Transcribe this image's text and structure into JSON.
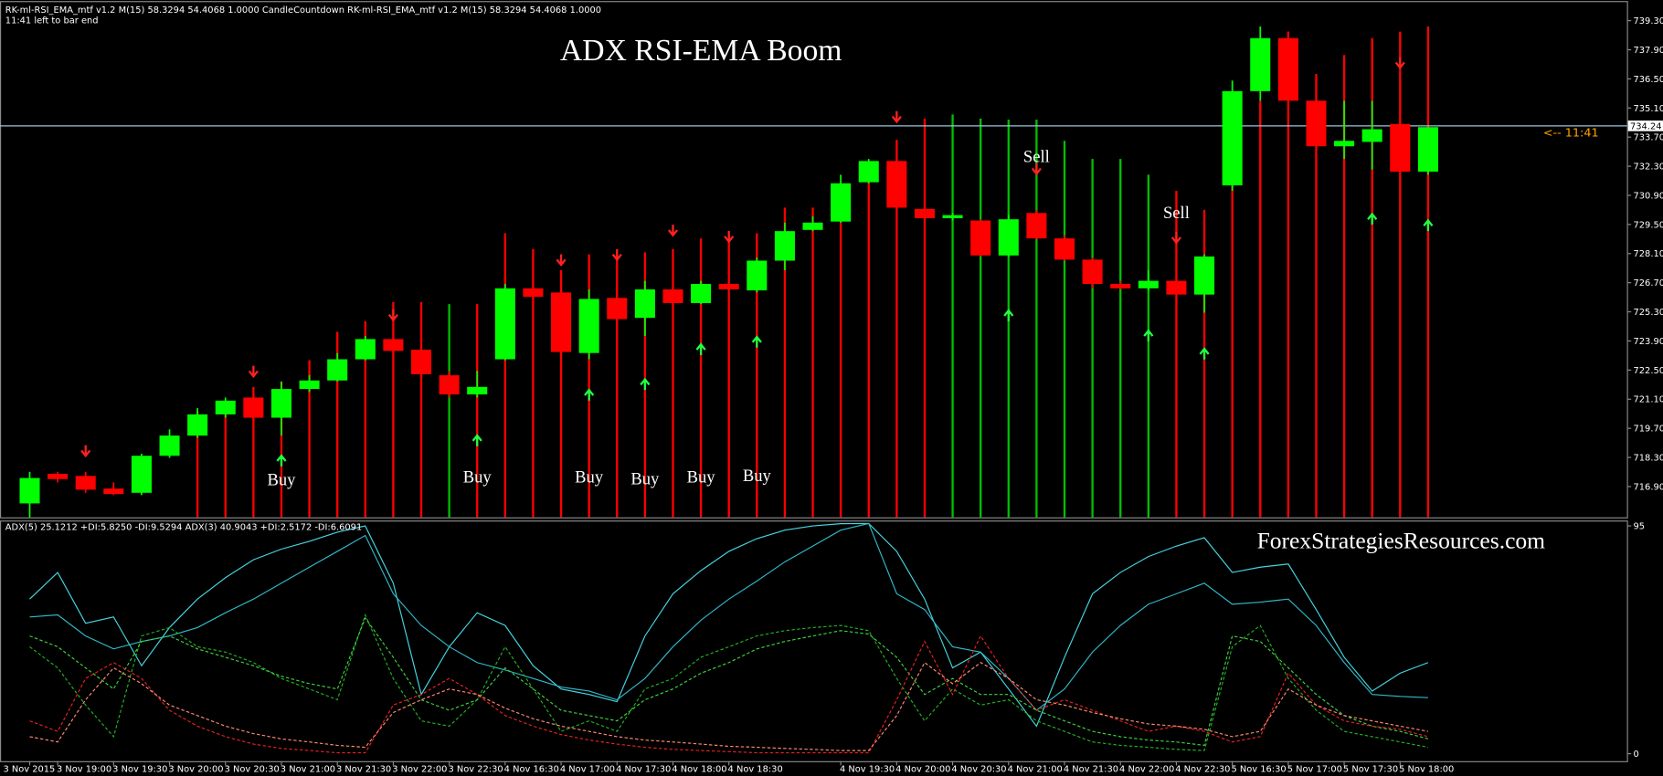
{
  "chart_data": [
    {
      "type": "candlestick",
      "title": "ADX RSI-EMA Boom",
      "header": [
        "RK-ml-RSI_EMA_mtf v1.2 M(15) 58.3294 54.4068 1.0000  CandleCountdown  RK-ml-RSI_EMA_mtf v1.2 M(15) 58.3294 54.4068 1.0000",
        "11:41 left to bar end"
      ],
      "categories": [
        "3 Nov 2015",
        "3 Nov 19:00",
        null,
        "3 Nov 19:30",
        null,
        "3 Nov 20:00",
        null,
        "3 Nov 20:30",
        null,
        "3 Nov 21:00",
        null,
        "3 Nov 21:30",
        null,
        "3 Nov 22:00",
        null,
        "3 Nov 22:30",
        null,
        "4 Nov 16:30",
        null,
        "4 Nov 17:00",
        null,
        "4 Nov 17:30",
        null,
        "4 Nov 18:00",
        null,
        "4 Nov 18:30",
        null,
        null,
        null,
        "4 Nov 19:30",
        null,
        "4 Nov 20:00",
        null,
        "4 Nov 20:30",
        null,
        "4 Nov 21:00",
        null,
        "4 Nov 21:30",
        null,
        "4 Nov 22:00",
        null,
        "4 Nov 22:30",
        null,
        "5 Nov 16:30",
        null,
        "5 Nov 17:00",
        null,
        "5 Nov 17:30",
        null,
        "5 Nov 18:00",
        null
      ],
      "open": [
        716.09,
        717.51,
        717.41,
        716.8,
        716.6,
        718.38,
        719.35,
        720.37,
        721.18,
        720.21,
        721.59,
        722.0,
        723.02,
        723.99,
        723.48,
        722.25,
        721.33,
        723.02,
        726.43,
        726.23,
        723.32,
        725.97,
        725.01,
        726.38,
        725.72,
        726.64,
        726.33,
        727.76,
        729.24,
        729.64,
        731.53,
        732.55,
        730.25,
        729.8,
        729.69,
        728.01,
        730.05,
        728.83,
        727.81,
        726.64,
        726.43,
        726.79,
        726.13,
        731.38,
        735.91,
        738.46,
        735.45,
        733.26,
        733.47,
        734.33,
        732.04
      ],
      "high": [
        717.61,
        717.61,
        717.61,
        717.1,
        718.48,
        719.65,
        720.67,
        721.18,
        721.33,
        721.95,
        722.25,
        723.32,
        724.14,
        724.14,
        723.63,
        722.46,
        722.46,
        726.64,
        726.64,
        726.38,
        726.38,
        726.38,
        726.79,
        726.64,
        726.79,
        726.79,
        727.91,
        729.59,
        729.9,
        731.89,
        732.65,
        732.65,
        730.31,
        730.05,
        729.75,
        729.95,
        730.2,
        728.98,
        727.91,
        726.79,
        727.3,
        727.3,
        728.06,
        736.42,
        739.02,
        738.77,
        736.73,
        735.45,
        735.45,
        734.54,
        734.18
      ],
      "low": [
        715.42,
        717.1,
        716.6,
        716.49,
        716.49,
        718.28,
        719.25,
        720.21,
        719.25,
        719.35,
        721.44,
        721.95,
        722.97,
        723.32,
        722.25,
        721.18,
        721.18,
        722.97,
        725.92,
        723.32,
        723.02,
        724.85,
        724.14,
        725.67,
        725.67,
        726.33,
        726.23,
        727.3,
        729.18,
        729.59,
        731.48,
        730.2,
        729.75,
        729.69,
        727.96,
        727.96,
        728.78,
        727.76,
        726.43,
        726.38,
        726.33,
        726.02,
        725.26,
        731.12,
        735.45,
        734.79,
        732.65,
        732.65,
        732.14,
        731.89,
        731.89
      ],
      "close": [
        717.31,
        717.26,
        716.75,
        716.54,
        718.38,
        719.35,
        720.37,
        721.03,
        720.21,
        721.59,
        722.0,
        723.02,
        723.99,
        723.42,
        722.3,
        721.33,
        721.69,
        726.43,
        726.02,
        723.37,
        725.92,
        724.95,
        726.38,
        725.72,
        726.64,
        726.38,
        727.76,
        729.18,
        729.59,
        731.48,
        732.55,
        730.31,
        729.8,
        729.95,
        728.01,
        729.75,
        728.83,
        727.81,
        726.64,
        726.43,
        726.79,
        726.13,
        727.96,
        735.91,
        738.46,
        735.45,
        733.26,
        733.52,
        734.08,
        732.04,
        734.18
      ],
      "up_color": "#00ff00",
      "down_color": "#ff0000",
      "spikes": [
        null,
        null,
        null,
        null,
        null,
        null,
        720.52,
        721.03,
        721.69,
        721.95,
        722.97,
        724.34,
        724.85,
        725.77,
        725.77,
        725.67,
        725.67,
        729.08,
        728.32,
        727.3,
        728.06,
        727.81,
        728.16,
        728.32,
        728.83,
        728.98,
        729.08,
        730.31,
        730.31,
        731.12,
        732.14,
        733.57,
        734.59,
        734.79,
        734.59,
        734.54,
        734.54,
        733.52,
        732.65,
        732.65,
        731.89,
        731.12,
        730.2,
        734.08,
        735.45,
        738.77,
        736.73,
        737.65,
        738.46,
        738.77,
        739.02
      ],
      "spike_colors": [
        null,
        null,
        null,
        null,
        null,
        null,
        "#ff0000",
        "#ff0000",
        "#ff0000",
        "#ff0000",
        "#ff0000",
        "#ff0000",
        "#ff0000",
        "#ff0000",
        "#ff0000",
        "#00c000",
        "#ff0000",
        "#ff0000",
        "#ff0000",
        "#ff0000",
        "#ff0000",
        "#ff0000",
        "#ff0000",
        "#ff0000",
        "#ff0000",
        "#ff0000",
        "#ff0000",
        "#ff0000",
        "#ff0000",
        "#ff0000",
        "#ff0000",
        "#ff0000",
        "#ff0000",
        "#00c000",
        "#00c000",
        "#00c000",
        "#00c000",
        "#00c000",
        "#00c000",
        "#00c000",
        "#00c000",
        "#ff0000",
        "#ff0000",
        "#ff0000",
        "#ff0000",
        "#ff0000",
        "#ff0000",
        "#ff0000",
        "#ff0000",
        "#ff0000",
        "#ff0000"
      ],
      "sell_arrows": {
        "color": "#ff2020",
        "index": [
          2,
          8,
          13,
          19,
          21,
          23,
          25,
          31,
          36,
          41,
          49
        ],
        "values": [
          718.48,
          722.3,
          725.01,
          727.66,
          727.91,
          729.08,
          728.78,
          734.54,
          732.04,
          728.73,
          737.14
        ]
      },
      "buy_arrows": {
        "color": "#20ff40",
        "index": [
          9,
          16,
          20,
          22,
          24,
          26,
          35,
          40,
          42,
          48,
          50
        ],
        "values": [
          718.28,
          719.25,
          721.44,
          721.95,
          723.63,
          723.99,
          725.26,
          724.29,
          723.42,
          729.9,
          729.59
        ]
      },
      "annotations": [
        {
          "text": "Buy",
          "index": 9,
          "value": 717.21
        },
        {
          "text": "Buy",
          "index": 16,
          "value": 717.36
        },
        {
          "text": "Buy",
          "index": 20,
          "value": 717.36
        },
        {
          "text": "Buy",
          "index": 22,
          "value": 717.26
        },
        {
          "text": "Buy",
          "index": 24,
          "value": 717.36
        },
        {
          "text": "Buy",
          "index": 26,
          "value": 717.41
        },
        {
          "text": "Sell",
          "index": 36,
          "value": 732.75
        },
        {
          "text": "Sell",
          "index": 41,
          "value": 730.05
        }
      ],
      "current_price": 734.24,
      "countdown": "<-- 11:41",
      "ylim": [
        715.42,
        740.19
      ],
      "yticks": [
        {
          "value": 716.9,
          "label": "716.90"
        },
        {
          "value": 718.3,
          "label": "718.30"
        },
        {
          "value": 719.7,
          "label": "719.70"
        },
        {
          "value": 721.1,
          "label": "721.10"
        },
        {
          "value": 722.5,
          "label": "722.50"
        },
        {
          "value": 723.9,
          "label": "723.90"
        },
        {
          "value": 725.3,
          "label": "725.30"
        },
        {
          "value": 726.7,
          "label": "726.70"
        },
        {
          "value": 728.1,
          "label": "728.10"
        },
        {
          "value": 729.5,
          "label": "729.50"
        },
        {
          "value": 730.9,
          "label": "730.90"
        },
        {
          "value": 732.3,
          "label": "732.30"
        },
        {
          "value": 733.7,
          "label": "733.70"
        },
        {
          "value": 735.1,
          "label": "735.10"
        },
        {
          "value": 736.5,
          "label": "736.50"
        },
        {
          "value": 737.9,
          "label": "737.90"
        },
        {
          "value": 739.3,
          "label": "739.30"
        }
      ]
    },
    {
      "type": "line",
      "header": "ADX(5) 25.1212 +DI:5.8250 -DI:9.5294  ADX(3) 40.9043 +DI:2.5172 -DI:6.6091",
      "watermark": "ForexStrategiesResources.com",
      "ylim": [
        -3.1,
        96.8
      ],
      "yticks": [
        0,
        95
      ],
      "series": [
        {
          "color": "#45d6e0",
          "line_style": "solid",
          "values": [
            64.5,
            75.6,
            54.4,
            57.0,
            36.7,
            52.6,
            64.5,
            73.4,
            80.9,
            85.3,
            88.6,
            92.4,
            95.0,
            71.1,
            24.7,
            44.6,
            58.8,
            53.5,
            36.7,
            27.0,
            24.7,
            21.7,
            49.1,
            66.7,
            76.4,
            84.4,
            89.7,
            93.2,
            95.0,
            95.9,
            96.0,
            84.4,
            64.5,
            35.8,
            42.4,
            27.0,
            11.5,
            40.2,
            66.7,
            75.6,
            82.2,
            86.6,
            90.1,
            75.6,
            77.8,
            79.1,
            60.1,
            40.2,
            26.1,
            33.6,
            38.0
          ]
        },
        {
          "color": "#2fb8c8",
          "line_style": "solid",
          "values": [
            57.0,
            57.9,
            49.1,
            43.7,
            46.8,
            49.1,
            52.6,
            58.8,
            64.5,
            71.1,
            77.8,
            84.4,
            91.0,
            66.7,
            53.5,
            44.6,
            38.0,
            34.9,
            31.4,
            27.8,
            26.1,
            22.5,
            31.4,
            44.6,
            55.7,
            64.5,
            72.0,
            80.0,
            86.6,
            93.2,
            96.0,
            66.7,
            60.1,
            44.6,
            42.4,
            31.4,
            18.1,
            27.0,
            42.4,
            53.5,
            62.3,
            66.7,
            71.1,
            62.3,
            63.2,
            64.5,
            53.5,
            38.0,
            24.7,
            23.9,
            23.4
          ]
        },
        {
          "color": "#22b022",
          "line_style": "dashed",
          "values": [
            44.6,
            35.8,
            20.3,
            7.1,
            49.1,
            52.6,
            44.6,
            42.4,
            38.0,
            31.4,
            27.0,
            22.5,
            57.9,
            31.4,
            13.7,
            11.5,
            22.5,
            44.6,
            27.0,
            9.3,
            13.7,
            9.3,
            27.0,
            31.4,
            40.2,
            44.6,
            49.1,
            51.3,
            52.6,
            53.5,
            51.3,
            31.4,
            13.7,
            27.0,
            20.3,
            22.5,
            13.7,
            9.3,
            4.9,
            3.5,
            2.7,
            1.8,
            1.3,
            44.6,
            53.5,
            31.4,
            18.1,
            9.3,
            7.1,
            4.9,
            2.7
          ]
        },
        {
          "color": "#3fd03f",
          "line_style": "dashed",
          "values": [
            49.1,
            44.6,
            35.8,
            27.0,
            46.8,
            49.1,
            43.7,
            40.2,
            36.7,
            32.3,
            29.2,
            27.0,
            56.6,
            40.2,
            22.5,
            18.1,
            22.5,
            35.8,
            27.0,
            18.1,
            15.9,
            13.7,
            22.5,
            27.0,
            33.6,
            38.0,
            43.7,
            46.8,
            49.1,
            51.3,
            49.9,
            40.2,
            24.7,
            31.4,
            24.7,
            24.7,
            18.1,
            13.7,
            9.3,
            7.1,
            5.7,
            4.9,
            3.5,
            49.1,
            46.8,
            35.8,
            24.7,
            15.9,
            11.5,
            9.3,
            6.2
          ]
        },
        {
          "color": "#e82020",
          "line_style": "dashed",
          "values": [
            13.7,
            9.3,
            31.4,
            38.0,
            31.4,
            18.1,
            11.5,
            7.1,
            4.0,
            2.2,
            1.3,
            0.4,
            0.4,
            20.3,
            24.7,
            31.4,
            24.7,
            15.9,
            11.5,
            8.0,
            5.7,
            4.0,
            2.7,
            1.8,
            1.3,
            0.9,
            0.4,
            0.4,
            0.4,
            0.4,
            0.4,
            22.5,
            46.8,
            24.7,
            49.1,
            31.4,
            18.1,
            22.5,
            18.1,
            13.7,
            9.3,
            11.5,
            9.3,
            4.9,
            7.1,
            33.6,
            20.3,
            13.7,
            11.5,
            10.2,
            7.1
          ]
        },
        {
          "color": "#ff8a70",
          "line_style": "dashed",
          "values": [
            7.1,
            4.9,
            22.5,
            35.8,
            29.2,
            20.3,
            15.9,
            11.5,
            8.4,
            6.2,
            4.9,
            3.5,
            2.7,
            17.2,
            22.5,
            27.0,
            24.7,
            19.0,
            14.6,
            11.5,
            9.3,
            7.1,
            5.7,
            4.9,
            4.0,
            3.1,
            2.7,
            2.2,
            1.8,
            1.3,
            1.3,
            15.9,
            38.0,
            29.2,
            38.0,
            31.4,
            22.5,
            20.3,
            17.2,
            14.6,
            12.4,
            11.5,
            10.2,
            7.1,
            9.3,
            27.0,
            20.3,
            15.9,
            13.7,
            11.5,
            9.3
          ]
        }
      ]
    }
  ]
}
